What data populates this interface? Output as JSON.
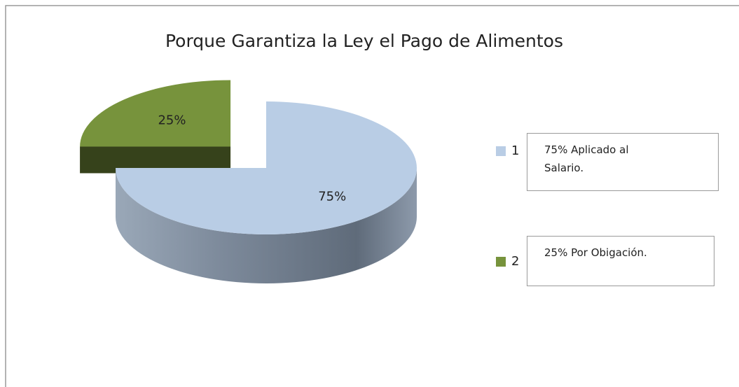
{
  "chart_data": {
    "type": "pie",
    "title": "Porque Garantiza la Ley el Pago de Alimentos",
    "categories": [
      "1",
      "2"
    ],
    "values": [
      75,
      25
    ],
    "value_labels": [
      "75%",
      "25%"
    ],
    "colors": [
      "#b9cde5",
      "#77933c"
    ],
    "annotations": [
      "75% Aplicado al Salario.",
      "25% Por Obigación."
    ]
  }
}
